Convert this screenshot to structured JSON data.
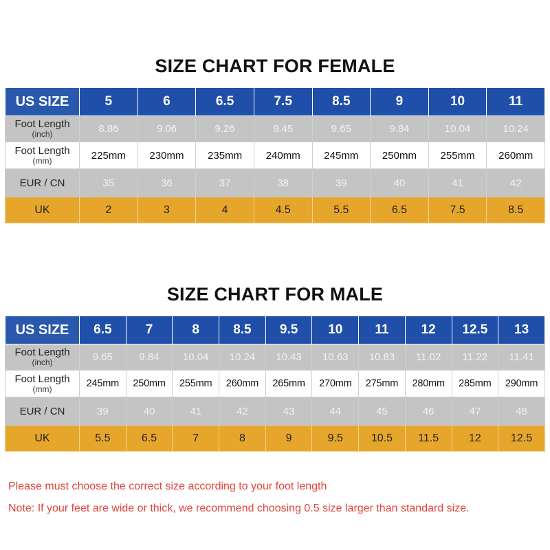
{
  "female": {
    "title": "SIZE CHART FOR FEMALE",
    "row_labels": {
      "us": "US SIZE",
      "inch_main": "Foot Length",
      "inch_sub": "(inch)",
      "mm_main": "Foot Length",
      "mm_sub": "(mm)",
      "eur": "EUR / CN",
      "uk": "UK"
    },
    "us": [
      "5",
      "6",
      "6.5",
      "7.5",
      "8.5",
      "9",
      "10",
      "11"
    ],
    "inch": [
      "8.86",
      "9.06",
      "9.26",
      "9.45",
      "9.65",
      "9.84",
      "10.04",
      "10.24"
    ],
    "mm": [
      "225mm",
      "230mm",
      "235mm",
      "240mm",
      "245mm",
      "250mm",
      "255mm",
      "260mm"
    ],
    "eur": [
      "35",
      "36",
      "37",
      "38",
      "39",
      "40",
      "41",
      "42"
    ],
    "uk": [
      "2",
      "3",
      "4",
      "4.5",
      "5.5",
      "6.5",
      "7.5",
      "8.5"
    ]
  },
  "male": {
    "title": "SIZE CHART FOR MALE",
    "row_labels": {
      "us": "US SIZE",
      "inch_main": "Foot Length",
      "inch_sub": "(inch)",
      "mm_main": "Foot Length",
      "mm_sub": "(mm)",
      "eur": "EUR / CN",
      "uk": "UK"
    },
    "us": [
      "6.5",
      "7",
      "8",
      "8.5",
      "9.5",
      "10",
      "11",
      "12",
      "12.5",
      "13"
    ],
    "inch": [
      "9.65",
      "9.84",
      "10.04",
      "10.24",
      "10.43",
      "10.63",
      "10.83",
      "11.02",
      "11.22",
      "11.41"
    ],
    "mm": [
      "245mm",
      "250mm",
      "255mm",
      "260mm",
      "265mm",
      "270mm",
      "275mm",
      "280mm",
      "285mm",
      "290mm"
    ],
    "eur": [
      "39",
      "40",
      "41",
      "42",
      "43",
      "44",
      "45",
      "46",
      "47",
      "48"
    ],
    "uk": [
      "5.5",
      "6.5",
      "7",
      "8",
      "9",
      "9.5",
      "10.5",
      "11.5",
      "12",
      "12.5"
    ]
  },
  "notes": {
    "line1": "Please must choose the correct size  according to your foot length",
    "line2": "Note: If your feet are wide or thick, we recommend choosing 0.5 size larger than standard size."
  },
  "colors": {
    "header_blue": "#1f4fa8",
    "row_gray": "#c4c4c4",
    "uk_orange": "#e6a62c",
    "note_red": "#e0453a"
  }
}
